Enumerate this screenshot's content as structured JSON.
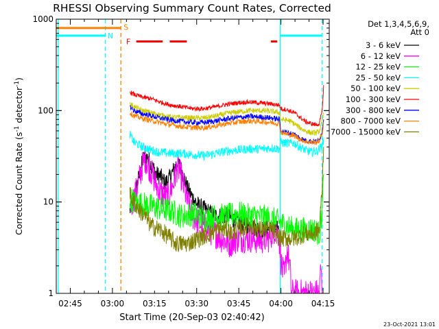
{
  "chart_data": {
    "type": "line",
    "title": "RHESSI Observing Summary Count Rates, Corrected",
    "xlabel": "Start Time (20-Sep-03 02:40:42)",
    "ylabel": "Corrected Count Rate (s",
    "ylabel_sup1": "-1",
    "ylabel_mid": " detector",
    "ylabel_sup2": "-1",
    "ylabel_end": ")",
    "yscale": "log",
    "ylim": [
      1,
      1000
    ],
    "xlim_minutes": [
      -0.7,
      96.5
    ],
    "x_ticks": [
      {
        "label": "02:45",
        "minutes": 4.3
      },
      {
        "label": "03:00",
        "minutes": 19.3
      },
      {
        "label": "03:15",
        "minutes": 34.3
      },
      {
        "label": "03:30",
        "minutes": 49.3
      },
      {
        "label": "03:45",
        "minutes": 64.3
      },
      {
        "label": "04:00",
        "minutes": 79.3
      },
      {
        "label": "04:15",
        "minutes": 94.3
      }
    ],
    "y_ticks": [
      {
        "label": "1",
        "value": 1
      },
      {
        "label": "10",
        "value": 10
      },
      {
        "label": "100",
        "value": 100
      },
      {
        "label": "1000",
        "value": 1000
      }
    ],
    "legend": {
      "position": "top-right",
      "header1": "Det 1,3,4,5,6,9,",
      "header2": "Att 0"
    },
    "series": [
      {
        "name": "3 - 6 keV",
        "color": "#000000",
        "points": [
          [
            25.5,
            8
          ],
          [
            27,
            12
          ],
          [
            29,
            20
          ],
          [
            30,
            28
          ],
          [
            31,
            32
          ],
          [
            32,
            30
          ],
          [
            33,
            26
          ],
          [
            35,
            20
          ],
          [
            36.5,
            19
          ],
          [
            38,
            16
          ],
          [
            39.5,
            18
          ],
          [
            41,
            22
          ],
          [
            42.5,
            28
          ],
          [
            44,
            22
          ],
          [
            46,
            14
          ],
          [
            48,
            11
          ],
          [
            50,
            9
          ],
          [
            53,
            8
          ],
          [
            56,
            7
          ],
          [
            60,
            7
          ],
          [
            64,
            6
          ],
          [
            68,
            5.5
          ],
          [
            72,
            5
          ],
          [
            76,
            5
          ],
          [
            78.5,
            5
          ]
        ]
      },
      {
        "name": "6 - 12 keV",
        "color": "#ff00ff",
        "points": [
          [
            26,
            9
          ],
          [
            28,
            14
          ],
          [
            30,
            25
          ],
          [
            31,
            30
          ],
          [
            33,
            22
          ],
          [
            35,
            15
          ],
          [
            37,
            12
          ],
          [
            39,
            11
          ],
          [
            41,
            16
          ],
          [
            42.5,
            25
          ],
          [
            44,
            18
          ],
          [
            46,
            10
          ],
          [
            48,
            7
          ],
          [
            50,
            6
          ],
          [
            53,
            5
          ],
          [
            56,
            4.5
          ],
          [
            58,
            4
          ],
          [
            61,
            3.5
          ],
          [
            64,
            4
          ],
          [
            68,
            4
          ],
          [
            72,
            3.8
          ],
          [
            75,
            4
          ],
          [
            77,
            5
          ],
          [
            78.5,
            4.5
          ],
          [
            79.5,
            2
          ],
          [
            80.5,
            1.5
          ],
          [
            81.5,
            3
          ],
          [
            82.5,
            2
          ],
          [
            83,
            1
          ],
          [
            93,
            1
          ],
          [
            93.5,
            2
          ],
          [
            94,
            1
          ]
        ]
      },
      {
        "name": "12 - 25 keV",
        "color": "#00ff00",
        "points": [
          [
            25.5,
            11
          ],
          [
            27,
            10
          ],
          [
            30,
            9.5
          ],
          [
            33,
            9
          ],
          [
            36,
            8.5
          ],
          [
            40,
            8
          ],
          [
            44,
            7
          ],
          [
            48,
            7.5
          ],
          [
            52,
            6.5
          ],
          [
            56,
            7
          ],
          [
            60,
            7
          ],
          [
            64,
            7.5
          ],
          [
            68,
            7
          ],
          [
            72,
            7
          ],
          [
            76,
            6.5
          ],
          [
            79,
            6
          ],
          [
            81,
            5.5
          ],
          [
            84,
            5
          ],
          [
            88,
            5
          ],
          [
            91,
            5
          ],
          [
            93,
            4.5
          ],
          [
            94,
            8
          ],
          [
            94.5,
            20
          ]
        ]
      },
      {
        "name": "25 - 50 keV",
        "color": "#00ffff",
        "points": [
          [
            25.5,
            55
          ],
          [
            27,
            45
          ],
          [
            30,
            40
          ],
          [
            33,
            37
          ],
          [
            36,
            35
          ],
          [
            40,
            34
          ],
          [
            44,
            34
          ],
          [
            48,
            33
          ],
          [
            52,
            32
          ],
          [
            56,
            34
          ],
          [
            60,
            36
          ],
          [
            64,
            37
          ],
          [
            68,
            38
          ],
          [
            72,
            38
          ],
          [
            76,
            39
          ],
          [
            78.8,
            38
          ],
          [
            79.2,
            45
          ],
          [
            81,
            44
          ],
          [
            84,
            44
          ],
          [
            86,
            40
          ],
          [
            88,
            37
          ],
          [
            90,
            35
          ],
          [
            92,
            36
          ],
          [
            93,
            38
          ],
          [
            94,
            42
          ],
          [
            94.5,
            48
          ]
        ]
      },
      {
        "name": "50 - 100 keV",
        "color": "#cccc00",
        "points": [
          [
            25.5,
            120
          ],
          [
            27,
            110
          ],
          [
            30,
            100
          ],
          [
            33,
            95
          ],
          [
            36,
            90
          ],
          [
            40,
            85
          ],
          [
            44,
            84
          ],
          [
            48,
            83
          ],
          [
            52,
            83
          ],
          [
            56,
            87
          ],
          [
            60,
            93
          ],
          [
            64,
            97
          ],
          [
            68,
            100
          ],
          [
            72,
            100
          ],
          [
            76,
            98
          ],
          [
            78.8,
            95
          ],
          [
            79.2,
            80
          ],
          [
            82,
            78
          ],
          [
            84,
            72
          ],
          [
            86,
            65
          ],
          [
            88,
            60
          ],
          [
            90,
            57
          ],
          [
            92,
            57
          ],
          [
            93,
            60
          ],
          [
            94,
            75
          ],
          [
            94.5,
            95
          ]
        ]
      },
      {
        "name": "100 - 300 keV",
        "color": "#ff0000",
        "points": [
          [
            25.5,
            160
          ],
          [
            27,
            150
          ],
          [
            30,
            140
          ],
          [
            33,
            135
          ],
          [
            36,
            125
          ],
          [
            40,
            115
          ],
          [
            44,
            110
          ],
          [
            48,
            105
          ],
          [
            52,
            105
          ],
          [
            56,
            110
          ],
          [
            60,
            117
          ],
          [
            64,
            122
          ],
          [
            68,
            124
          ],
          [
            72,
            121
          ],
          [
            76,
            118
          ],
          [
            78.8,
            115
          ],
          [
            79.2,
            105
          ],
          [
            81,
            103
          ],
          [
            84,
            95
          ],
          [
            86,
            85
          ],
          [
            88,
            76
          ],
          [
            90,
            72
          ],
          [
            92,
            70
          ],
          [
            93,
            72
          ],
          [
            94,
            100
          ],
          [
            94.5,
            190
          ]
        ]
      },
      {
        "name": "300 - 800 keV",
        "color": "#0000ff",
        "points": [
          [
            25.5,
            110
          ],
          [
            27,
            100
          ],
          [
            30,
            92
          ],
          [
            33,
            88
          ],
          [
            36,
            83
          ],
          [
            40,
            79
          ],
          [
            44,
            76
          ],
          [
            48,
            74
          ],
          [
            52,
            74
          ],
          [
            56,
            77
          ],
          [
            60,
            81
          ],
          [
            64,
            84
          ],
          [
            68,
            86
          ],
          [
            72,
            85
          ],
          [
            76,
            83
          ],
          [
            78.8,
            80
          ],
          [
            79.2,
            60
          ],
          [
            81,
            58
          ],
          [
            84,
            55
          ],
          [
            86,
            50
          ],
          [
            88,
            47
          ],
          [
            90,
            46
          ],
          [
            92,
            46
          ],
          [
            93,
            48
          ],
          [
            94,
            60
          ],
          [
            94.5,
            80
          ]
        ]
      },
      {
        "name": "800 - 7000 keV",
        "color": "#ff8000",
        "points": [
          [
            25.5,
            95
          ],
          [
            27,
            88
          ],
          [
            30,
            82
          ],
          [
            33,
            78
          ],
          [
            36,
            74
          ],
          [
            40,
            70
          ],
          [
            44,
            67
          ],
          [
            48,
            65
          ],
          [
            52,
            65
          ],
          [
            56,
            68
          ],
          [
            60,
            72
          ],
          [
            64,
            75
          ],
          [
            68,
            77
          ],
          [
            72,
            76
          ],
          [
            76,
            74
          ],
          [
            78.8,
            72
          ],
          [
            79.2,
            58
          ],
          [
            81,
            56
          ],
          [
            84,
            53
          ],
          [
            86,
            49
          ],
          [
            88,
            46
          ],
          [
            90,
            45
          ],
          [
            92,
            45
          ],
          [
            93,
            47
          ],
          [
            94,
            57
          ],
          [
            94.5,
            75
          ]
        ]
      },
      {
        "name": "7000 - 15000 keV",
        "color": "#808000",
        "points": [
          [
            25.5,
            12
          ],
          [
            27,
            10
          ],
          [
            29,
            8
          ],
          [
            31,
            7
          ],
          [
            33,
            5.5
          ],
          [
            36,
            5
          ],
          [
            38,
            4.5
          ],
          [
            40,
            4
          ],
          [
            42,
            3.5
          ],
          [
            46,
            3.5
          ],
          [
            50,
            4
          ],
          [
            54,
            4.5
          ],
          [
            57,
            5
          ],
          [
            60,
            5
          ],
          [
            62,
            4.5
          ],
          [
            64,
            5
          ],
          [
            68,
            5.5
          ],
          [
            72,
            5
          ],
          [
            76,
            5
          ],
          [
            79,
            4
          ],
          [
            81,
            4
          ],
          [
            84,
            4
          ],
          [
            88,
            4.5
          ],
          [
            91,
            4.5
          ],
          [
            93,
            5
          ],
          [
            94,
            15
          ],
          [
            94.5,
            40
          ]
        ]
      }
    ],
    "annotations": [
      {
        "label": "S",
        "color": "#ff8000",
        "line": {
          "x_minutes": [
            -0.7,
            22.3
          ],
          "value": 800
        },
        "marker_minutes": 22.3,
        "text_minutes": 23.3,
        "text_value": 820
      },
      {
        "label": "N",
        "color": "#00ffff",
        "line": {
          "x_minutes": [
            -0.7,
            16.8
          ],
          "value": 660
        },
        "marker_minutes": 16.8,
        "text_minutes": 17.6,
        "text_value": 660
      },
      {
        "label": "F",
        "color": "#ff0000",
        "text_minutes": 24.2,
        "text_value": 570,
        "segments": [
          [
            27.8,
            37.2
          ],
          [
            39.7,
            45.8
          ],
          [
            75.7,
            78.0
          ]
        ],
        "value": 570
      },
      {
        "label": "",
        "color": "#00ffff",
        "line": {
          "x_minutes": [
            79.0,
            94.0
          ],
          "value": 660
        },
        "marker_minutes": 79.0
      }
    ],
    "verticals": [
      {
        "x_minutes": 0.0,
        "color": "#00ffff",
        "style": "solid"
      },
      {
        "x_minutes": 16.8,
        "color": "#00ffff",
        "style": "dashed"
      },
      {
        "x_minutes": 22.3,
        "color": "#ff8000",
        "style": "dashed"
      },
      {
        "x_minutes": 79.0,
        "color": "#00ffff",
        "style": "solid"
      },
      {
        "x_minutes": 94.0,
        "color": "#00ffff",
        "style": "dashed"
      }
    ]
  },
  "footer": {
    "timestamp": "23-Oct-2021 13:01"
  }
}
